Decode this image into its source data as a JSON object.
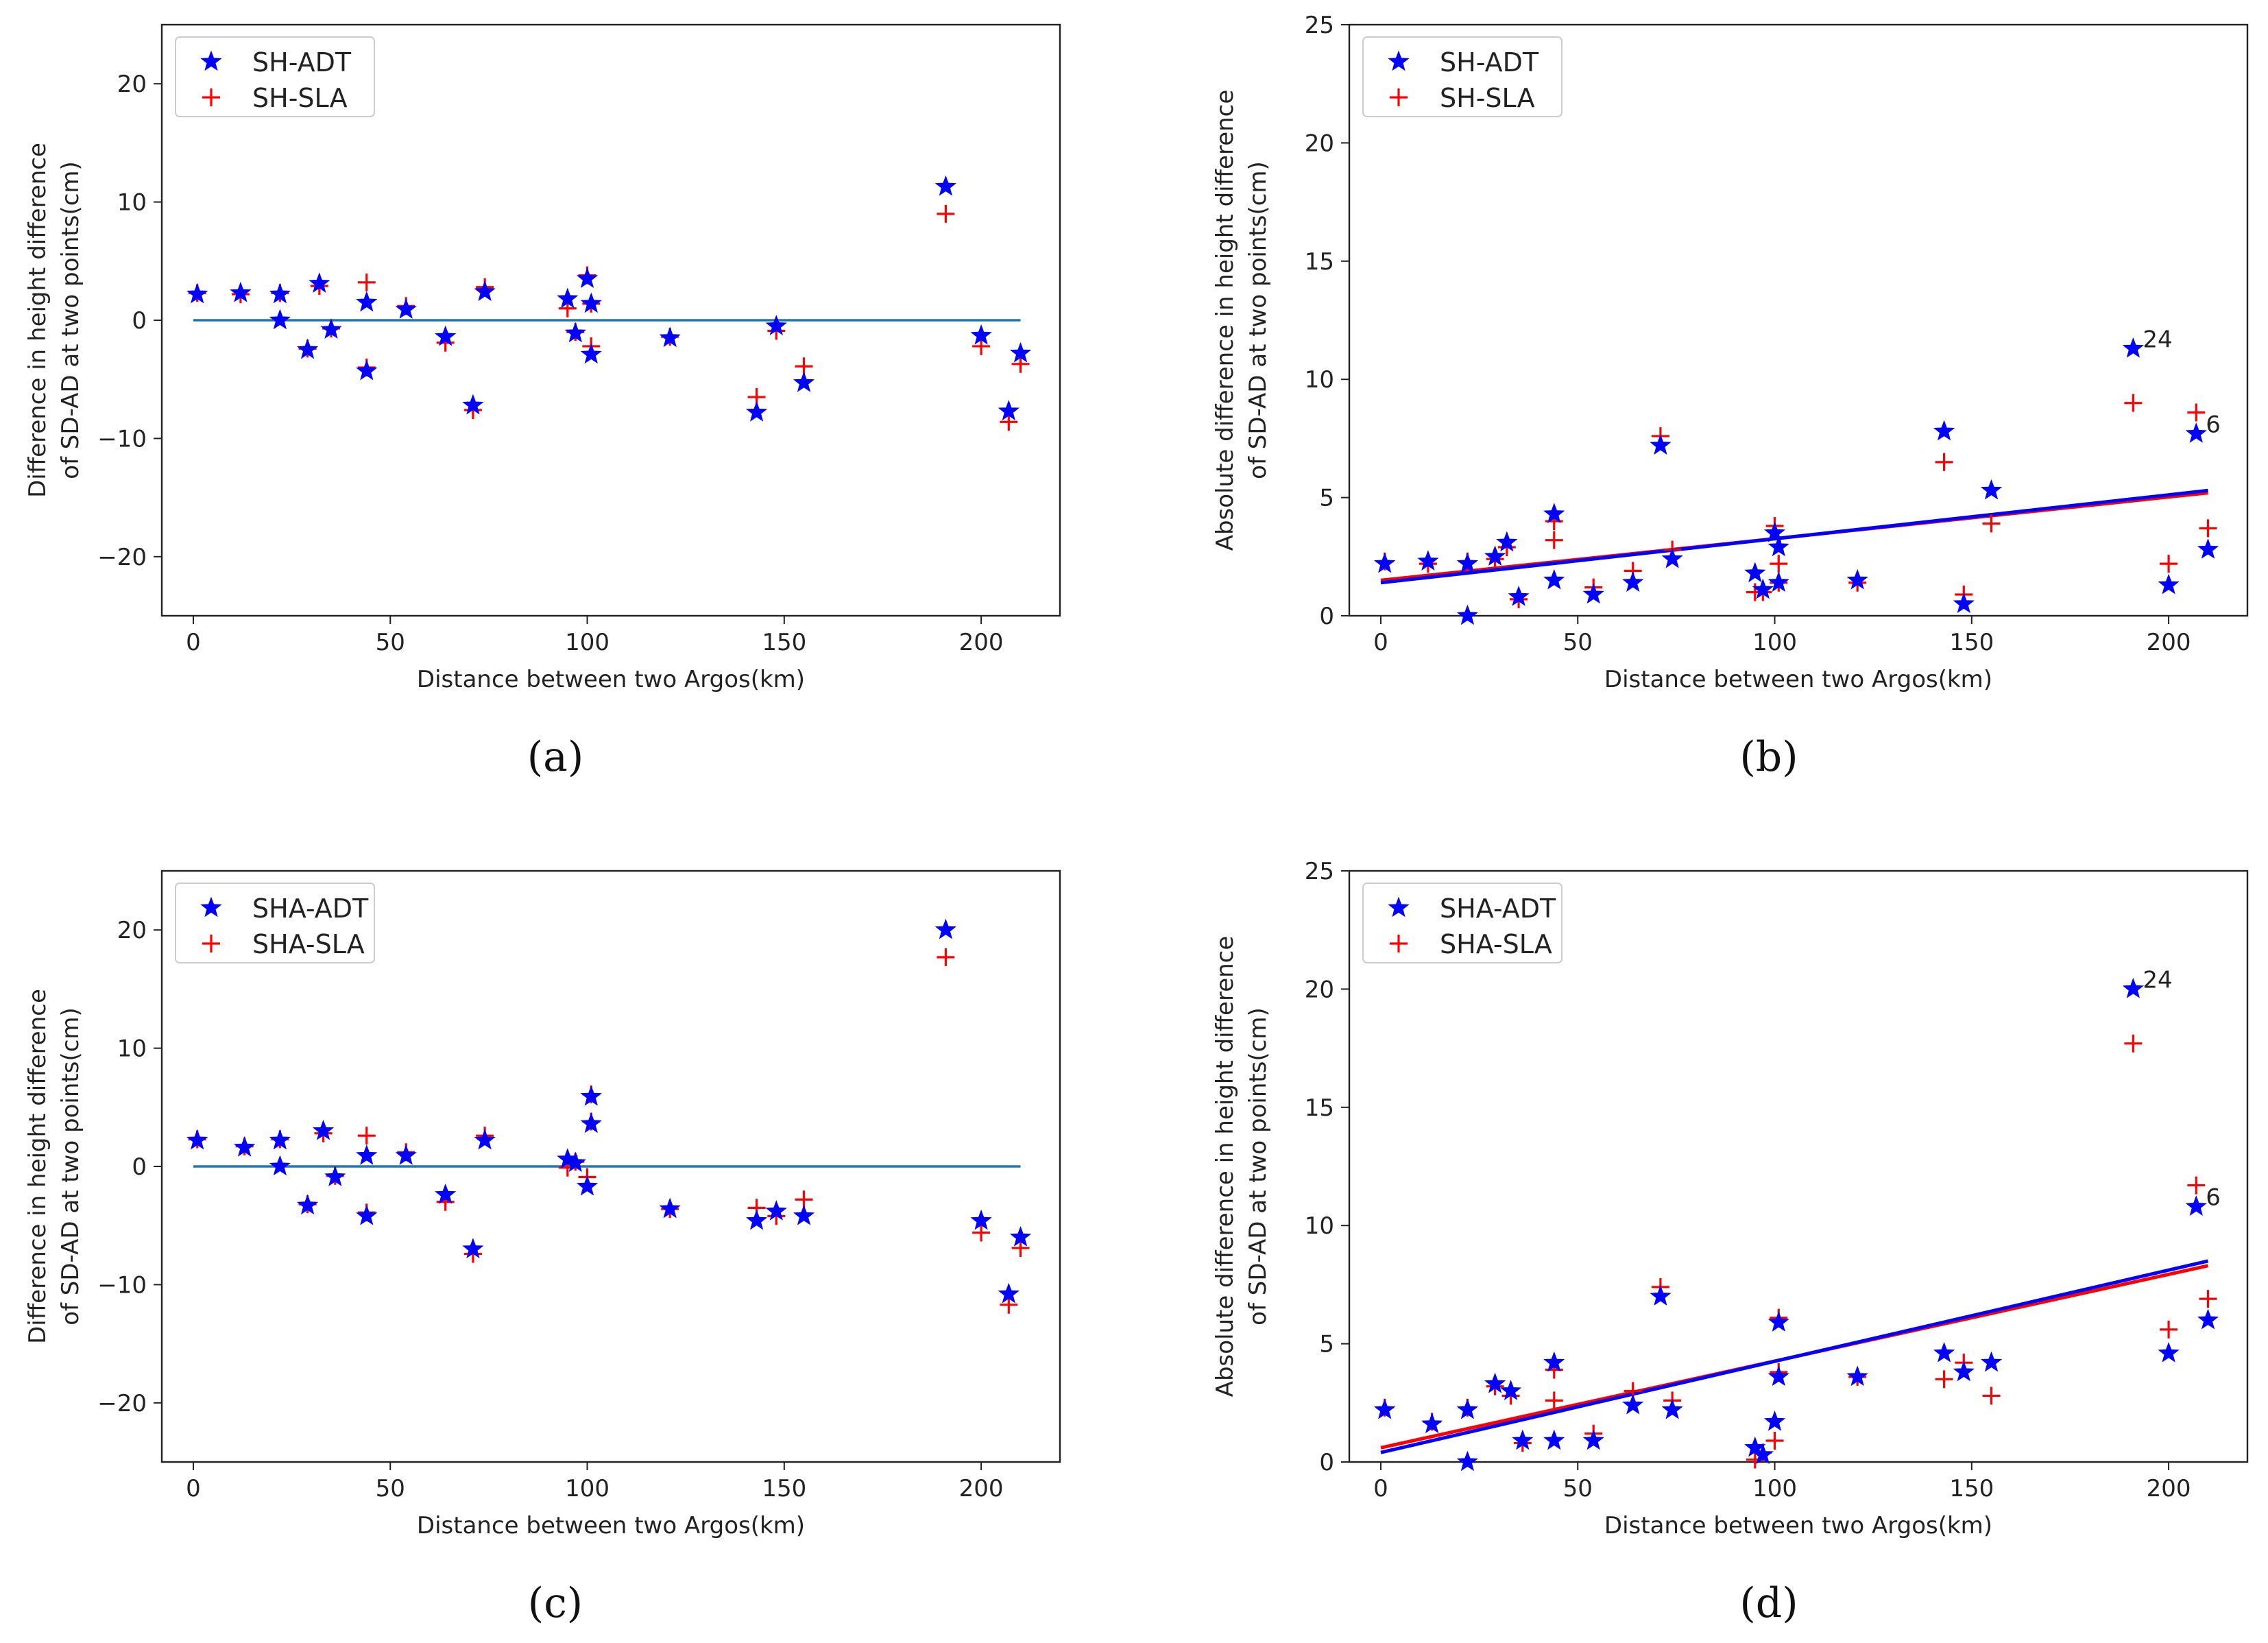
{
  "colors": {
    "adt": "#0000ff",
    "sla": "#ff0000",
    "zero_line": "#1f77b4",
    "fit_sla": "#ff0000",
    "fit_adt": "#0000ff"
  },
  "chart_data": [
    {
      "id": "a",
      "caption": "(a)",
      "type": "scatter",
      "xlabel": "Distance between two Argos(km)",
      "ylabel_line1": "Difference in height difference",
      "ylabel_line2": "of SD-AD at two points(cm)",
      "xlim": [
        -8,
        220
      ],
      "ylim": [
        -25,
        25
      ],
      "xticks": [
        0,
        50,
        100,
        150,
        200
      ],
      "yticks": [
        -20,
        -10,
        0,
        10,
        20
      ],
      "ytick_labels": [
        "−20",
        "−10",
        "0",
        "10",
        "20"
      ],
      "legend": [
        "SH-ADT",
        "SH-SLA"
      ],
      "reference_line": {
        "y": 0,
        "x_from": 0,
        "x_to": 210
      },
      "series": [
        {
          "name": "SH-ADT",
          "marker": "star",
          "points": [
            [
              1,
              2.2
            ],
            [
              12,
              2.3
            ],
            [
              22,
              0.0
            ],
            [
              22,
              2.2
            ],
            [
              29,
              -2.5
            ],
            [
              32,
              3.1
            ],
            [
              35,
              -0.8
            ],
            [
              44,
              1.5
            ],
            [
              44,
              -4.3
            ],
            [
              54,
              0.9
            ],
            [
              64,
              -1.4
            ],
            [
              71,
              -7.2
            ],
            [
              74,
              2.4
            ],
            [
              95,
              1.8
            ],
            [
              97,
              -1.1
            ],
            [
              100,
              3.5
            ],
            [
              101,
              -2.9
            ],
            [
              101,
              1.4
            ],
            [
              121,
              -1.5
            ],
            [
              143,
              -7.8
            ],
            [
              148,
              -0.5
            ],
            [
              155,
              -5.3
            ],
            [
              191,
              11.3
            ],
            [
              200,
              -1.3
            ],
            [
              207,
              -7.7
            ],
            [
              210,
              -2.8
            ]
          ]
        },
        {
          "name": "SH-SLA",
          "marker": "plus",
          "points": [
            [
              1,
              2.3
            ],
            [
              12,
              2.2
            ],
            [
              22,
              2.3
            ],
            [
              29,
              -2.4
            ],
            [
              32,
              2.9
            ],
            [
              35,
              -0.7
            ],
            [
              44,
              3.2
            ],
            [
              44,
              -4.0
            ],
            [
              54,
              1.2
            ],
            [
              64,
              -1.9
            ],
            [
              71,
              -7.6
            ],
            [
              74,
              2.8
            ],
            [
              95,
              1.0
            ],
            [
              97,
              -1.0
            ],
            [
              100,
              3.8
            ],
            [
              101,
              -2.2
            ],
            [
              101,
              1.4
            ],
            [
              121,
              -1.4
            ],
            [
              143,
              -6.5
            ],
            [
              148,
              -0.9
            ],
            [
              155,
              -3.9
            ],
            [
              191,
              9.0
            ],
            [
              200,
              -2.2
            ],
            [
              207,
              -8.6
            ],
            [
              210,
              -3.7
            ]
          ]
        }
      ]
    },
    {
      "id": "b",
      "caption": "(b)",
      "type": "scatter",
      "xlabel": "Distance between two Argos(km)",
      "ylabel_line1": "Absolute difference in height difference",
      "ylabel_line2": "of SD-AD at two points(cm)",
      "xlim": [
        -8,
        220
      ],
      "ylim": [
        0,
        25
      ],
      "xticks": [
        0,
        50,
        100,
        150,
        200
      ],
      "yticks": [
        0,
        5,
        10,
        15,
        20,
        25
      ],
      "ytick_labels": [
        "0",
        "5",
        "10",
        "15",
        "20",
        "25"
      ],
      "legend": [
        "SH-ADT",
        "SH-SLA"
      ],
      "annotations": [
        {
          "text": "24",
          "x": 191,
          "y": 11.3
        },
        {
          "text": "6",
          "x": 207,
          "y": 7.7
        }
      ],
      "fit_lines": [
        {
          "name": "SH-SLA fit",
          "from": [
            0,
            1.5
          ],
          "to": [
            210,
            5.2
          ]
        },
        {
          "name": "SH-ADT fit",
          "from": [
            0,
            1.4
          ],
          "to": [
            210,
            5.3
          ]
        }
      ],
      "series": [
        {
          "name": "SH-ADT",
          "marker": "star",
          "points": [
            [
              1,
              2.2
            ],
            [
              12,
              2.3
            ],
            [
              22,
              0.0
            ],
            [
              22,
              2.2
            ],
            [
              29,
              2.5
            ],
            [
              32,
              3.1
            ],
            [
              35,
              0.8
            ],
            [
              44,
              1.5
            ],
            [
              44,
              4.3
            ],
            [
              54,
              0.9
            ],
            [
              64,
              1.4
            ],
            [
              71,
              7.2
            ],
            [
              74,
              2.4
            ],
            [
              95,
              1.8
            ],
            [
              97,
              1.1
            ],
            [
              100,
              3.5
            ],
            [
              101,
              2.9
            ],
            [
              101,
              1.4
            ],
            [
              121,
              1.5
            ],
            [
              143,
              7.8
            ],
            [
              148,
              0.5
            ],
            [
              155,
              5.3
            ],
            [
              191,
              11.3
            ],
            [
              200,
              1.3
            ],
            [
              207,
              7.7
            ],
            [
              210,
              2.8
            ]
          ]
        },
        {
          "name": "SH-SLA",
          "marker": "plus",
          "points": [
            [
              1,
              2.3
            ],
            [
              12,
              2.2
            ],
            [
              22,
              2.3
            ],
            [
              29,
              2.4
            ],
            [
              32,
              2.9
            ],
            [
              35,
              0.7
            ],
            [
              44,
              3.2
            ],
            [
              44,
              4.0
            ],
            [
              54,
              1.2
            ],
            [
              64,
              1.9
            ],
            [
              71,
              7.6
            ],
            [
              74,
              2.8
            ],
            [
              95,
              1.0
            ],
            [
              97,
              1.0
            ],
            [
              100,
              3.8
            ],
            [
              101,
              2.2
            ],
            [
              101,
              1.4
            ],
            [
              121,
              1.4
            ],
            [
              143,
              6.5
            ],
            [
              148,
              0.9
            ],
            [
              155,
              3.9
            ],
            [
              191,
              9.0
            ],
            [
              200,
              2.2
            ],
            [
              207,
              8.6
            ],
            [
              210,
              3.7
            ]
          ]
        }
      ]
    },
    {
      "id": "c",
      "caption": "(c)",
      "type": "scatter",
      "xlabel": "Distance between two Argos(km)",
      "ylabel_line1": "Difference in height difference",
      "ylabel_line2": "of SD-AD at two points(cm)",
      "xlim": [
        -8,
        220
      ],
      "ylim": [
        -25,
        25
      ],
      "xticks": [
        0,
        50,
        100,
        150,
        200
      ],
      "yticks": [
        -20,
        -10,
        0,
        10,
        20
      ],
      "ytick_labels": [
        "−20",
        "−10",
        "0",
        "10",
        "20"
      ],
      "legend": [
        "SHA-ADT",
        "SHA-SLA"
      ],
      "reference_line": {
        "y": 0,
        "x_from": 0,
        "x_to": 210
      },
      "series": [
        {
          "name": "SHA-ADT",
          "marker": "star",
          "points": [
            [
              1,
              2.2
            ],
            [
              13,
              1.6
            ],
            [
              22,
              0.0
            ],
            [
              22,
              2.2
            ],
            [
              29,
              -3.3
            ],
            [
              33,
              3.0
            ],
            [
              36,
              -0.9
            ],
            [
              44,
              0.9
            ],
            [
              44,
              -4.2
            ],
            [
              54,
              0.9
            ],
            [
              64,
              -2.4
            ],
            [
              71,
              -7.0
            ],
            [
              74,
              2.2
            ],
            [
              95,
              0.6
            ],
            [
              97,
              0.3
            ],
            [
              100,
              -1.7
            ],
            [
              101,
              5.9
            ],
            [
              101,
              3.6
            ],
            [
              121,
              -3.6
            ],
            [
              143,
              -4.6
            ],
            [
              148,
              -3.8
            ],
            [
              155,
              -4.2
            ],
            [
              191,
              20.0
            ],
            [
              200,
              -4.6
            ],
            [
              207,
              -10.8
            ],
            [
              210,
              -6.0
            ]
          ]
        },
        {
          "name": "SHA-SLA",
          "marker": "plus",
          "points": [
            [
              1,
              2.3
            ],
            [
              13,
              1.7
            ],
            [
              22,
              2.3
            ],
            [
              29,
              -3.2
            ],
            [
              33,
              2.8
            ],
            [
              36,
              -0.8
            ],
            [
              44,
              2.6
            ],
            [
              44,
              -3.9
            ],
            [
              54,
              1.2
            ],
            [
              64,
              -3.0
            ],
            [
              71,
              -7.4
            ],
            [
              74,
              2.6
            ],
            [
              95,
              -0.1
            ],
            [
              97,
              0.4
            ],
            [
              100,
              -0.9
            ],
            [
              101,
              6.1
            ],
            [
              101,
              3.8
            ],
            [
              121,
              -3.6
            ],
            [
              143,
              -3.5
            ],
            [
              148,
              -4.2
            ],
            [
              155,
              -2.8
            ],
            [
              191,
              17.7
            ],
            [
              200,
              -5.6
            ],
            [
              207,
              -11.7
            ],
            [
              210,
              -6.9
            ]
          ]
        }
      ]
    },
    {
      "id": "d",
      "caption": "(d)",
      "type": "scatter",
      "xlabel": "Distance between two Argos(km)",
      "ylabel_line1": "Absolute difference in height difference",
      "ylabel_line2": "of SD-AD at two points(cm)",
      "xlim": [
        -8,
        220
      ],
      "ylim": [
        0,
        25
      ],
      "xticks": [
        0,
        50,
        100,
        150,
        200
      ],
      "yticks": [
        0,
        5,
        10,
        15,
        20,
        25
      ],
      "ytick_labels": [
        "0",
        "5",
        "10",
        "15",
        "20",
        "25"
      ],
      "legend": [
        "SHA-ADT",
        "SHA-SLA"
      ],
      "annotations": [
        {
          "text": "24",
          "x": 191,
          "y": 20.0
        },
        {
          "text": "6",
          "x": 207,
          "y": 10.8
        }
      ],
      "fit_lines": [
        {
          "name": "SHA-SLA fit",
          "from": [
            0,
            0.6
          ],
          "to": [
            210,
            8.3
          ]
        },
        {
          "name": "SHA-ADT fit",
          "from": [
            0,
            0.4
          ],
          "to": [
            210,
            8.5
          ]
        }
      ],
      "series": [
        {
          "name": "SHA-ADT",
          "marker": "star",
          "points": [
            [
              1,
              2.2
            ],
            [
              13,
              1.6
            ],
            [
              22,
              0.0
            ],
            [
              22,
              2.2
            ],
            [
              29,
              3.3
            ],
            [
              33,
              3.0
            ],
            [
              36,
              0.9
            ],
            [
              44,
              0.9
            ],
            [
              44,
              4.2
            ],
            [
              54,
              0.9
            ],
            [
              64,
              2.4
            ],
            [
              71,
              7.0
            ],
            [
              74,
              2.2
            ],
            [
              95,
              0.6
            ],
            [
              97,
              0.3
            ],
            [
              100,
              1.7
            ],
            [
              101,
              5.9
            ],
            [
              101,
              3.6
            ],
            [
              121,
              3.6
            ],
            [
              143,
              4.6
            ],
            [
              148,
              3.8
            ],
            [
              155,
              4.2
            ],
            [
              191,
              20.0
            ],
            [
              200,
              4.6
            ],
            [
              207,
              10.8
            ],
            [
              210,
              6.0
            ]
          ]
        },
        {
          "name": "SHA-SLA",
          "marker": "plus",
          "points": [
            [
              1,
              2.3
            ],
            [
              13,
              1.7
            ],
            [
              22,
              2.3
            ],
            [
              29,
              3.2
            ],
            [
              33,
              2.8
            ],
            [
              36,
              0.8
            ],
            [
              44,
              2.6
            ],
            [
              44,
              3.9
            ],
            [
              54,
              1.2
            ],
            [
              64,
              3.0
            ],
            [
              71,
              7.4
            ],
            [
              74,
              2.6
            ],
            [
              95,
              0.1
            ],
            [
              97,
              0.4
            ],
            [
              100,
              0.9
            ],
            [
              101,
              6.1
            ],
            [
              101,
              3.8
            ],
            [
              121,
              3.6
            ],
            [
              143,
              3.5
            ],
            [
              148,
              4.2
            ],
            [
              155,
              2.8
            ],
            [
              191,
              17.7
            ],
            [
              200,
              5.6
            ],
            [
              207,
              11.7
            ],
            [
              210,
              6.9
            ]
          ]
        }
      ]
    }
  ]
}
